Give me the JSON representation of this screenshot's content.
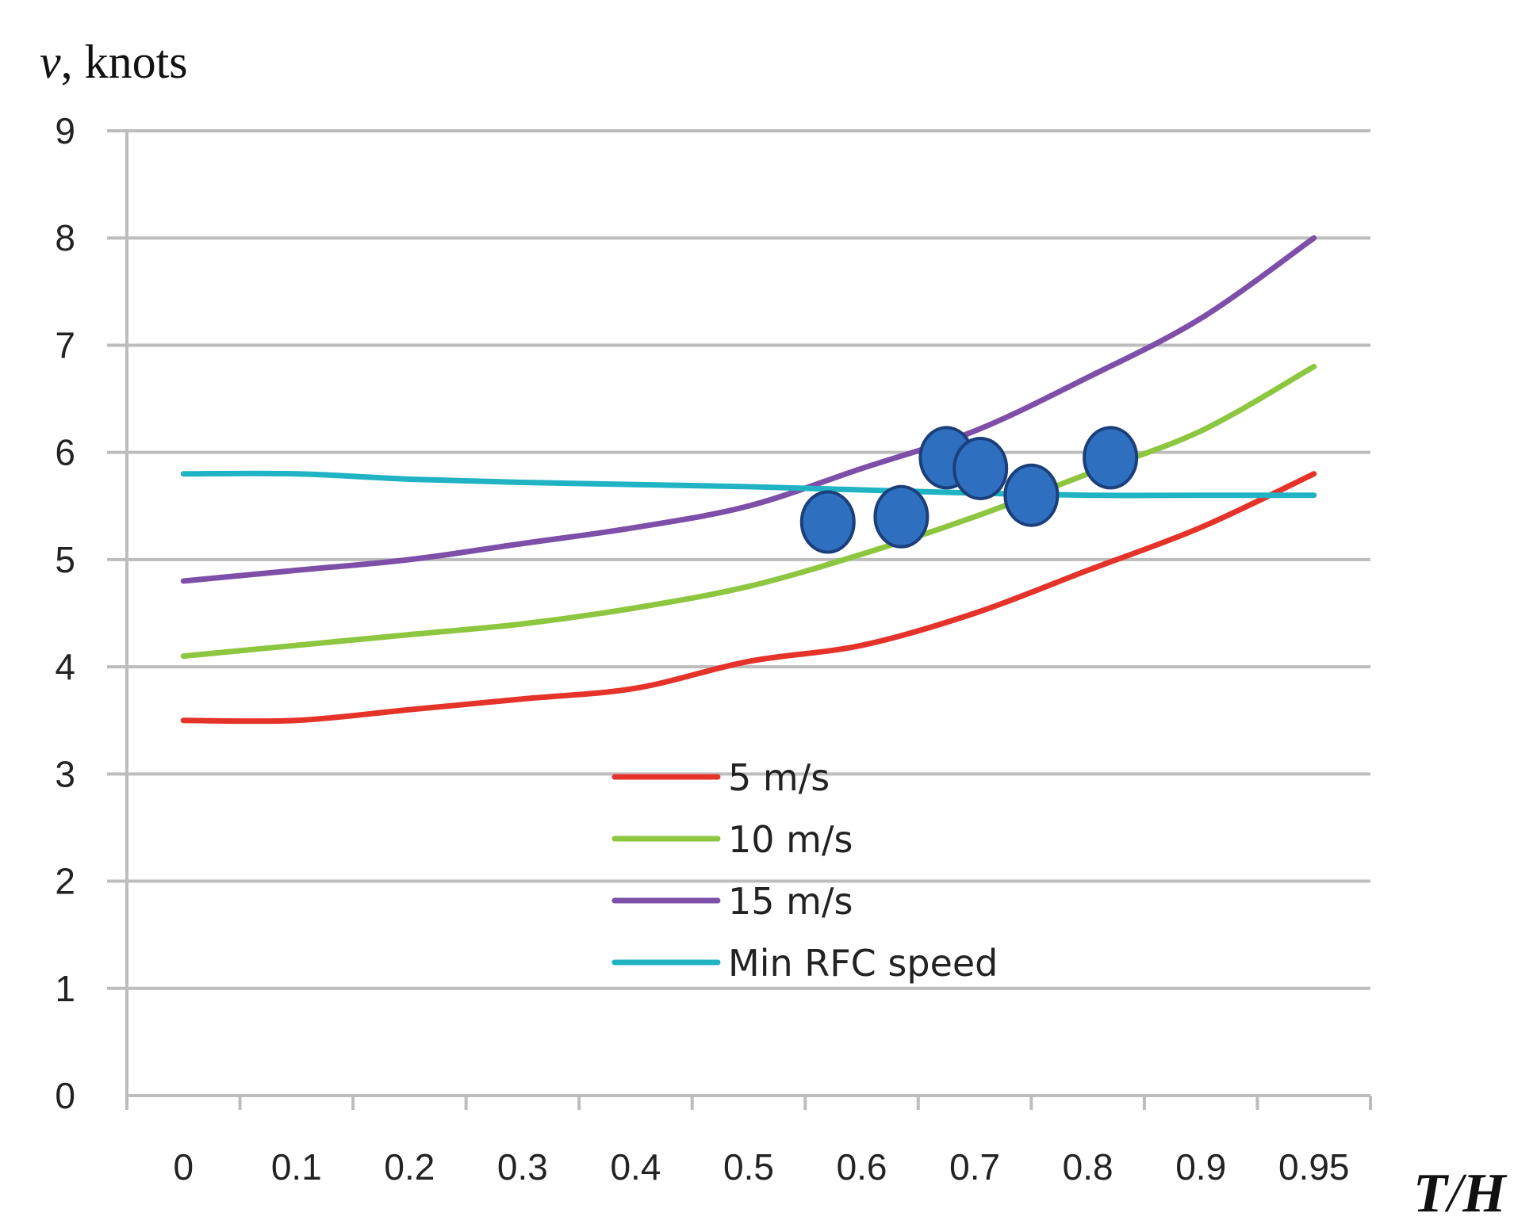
{
  "chart_data": {
    "type": "line",
    "ylabel_var": "v",
    "ylabel_unit": ", knots",
    "xlabel_num": "T",
    "xlabel_sep": "/",
    "xlabel_den": "H",
    "categories": [
      "0",
      "0.1",
      "0.2",
      "0.3",
      "0.4",
      "0.5",
      "0.6",
      "0.7",
      "0.8",
      "0.9",
      "0.95"
    ],
    "yticks": [
      "0",
      "1",
      "2",
      "3",
      "4",
      "5",
      "6",
      "7",
      "8",
      "9"
    ],
    "ylim": [
      0,
      9
    ],
    "grid": true,
    "legend_position": "center",
    "series": [
      {
        "name": "5 m/s",
        "color": "#e5332a",
        "values": [
          3.5,
          3.5,
          3.6,
          3.7,
          3.8,
          4.05,
          4.2,
          4.5,
          4.9,
          5.3,
          5.8
        ]
      },
      {
        "name": "10 m/s",
        "color": "#8dc63f",
        "values": [
          4.1,
          4.2,
          4.3,
          4.4,
          4.55,
          4.75,
          5.05,
          5.4,
          5.8,
          6.2,
          6.8
        ]
      },
      {
        "name": "15 m/s",
        "color": "#7d4fa8",
        "values": [
          4.8,
          4.9,
          5.0,
          5.15,
          5.3,
          5.5,
          5.85,
          6.2,
          6.7,
          7.25,
          8.0
        ]
      },
      {
        "name": "Min RFC speed",
        "color": "#1fb3c4",
        "values": [
          5.8,
          5.8,
          5.75,
          5.72,
          5.7,
          5.68,
          5.65,
          5.62,
          5.6,
          5.6,
          5.6
        ]
      }
    ],
    "scatter": {
      "color": "#2f6fbf",
      "edge": "#1a3f7a",
      "points": [
        {
          "x": 6.7,
          "y": 5.35
        },
        {
          "x": 7.35,
          "y": 5.4
        },
        {
          "x": 7.75,
          "y": 5.95
        },
        {
          "x": 8.05,
          "y": 5.85
        },
        {
          "x": 8.5,
          "y": 5.6
        },
        {
          "x": 9.2,
          "y": 5.95
        }
      ]
    }
  }
}
